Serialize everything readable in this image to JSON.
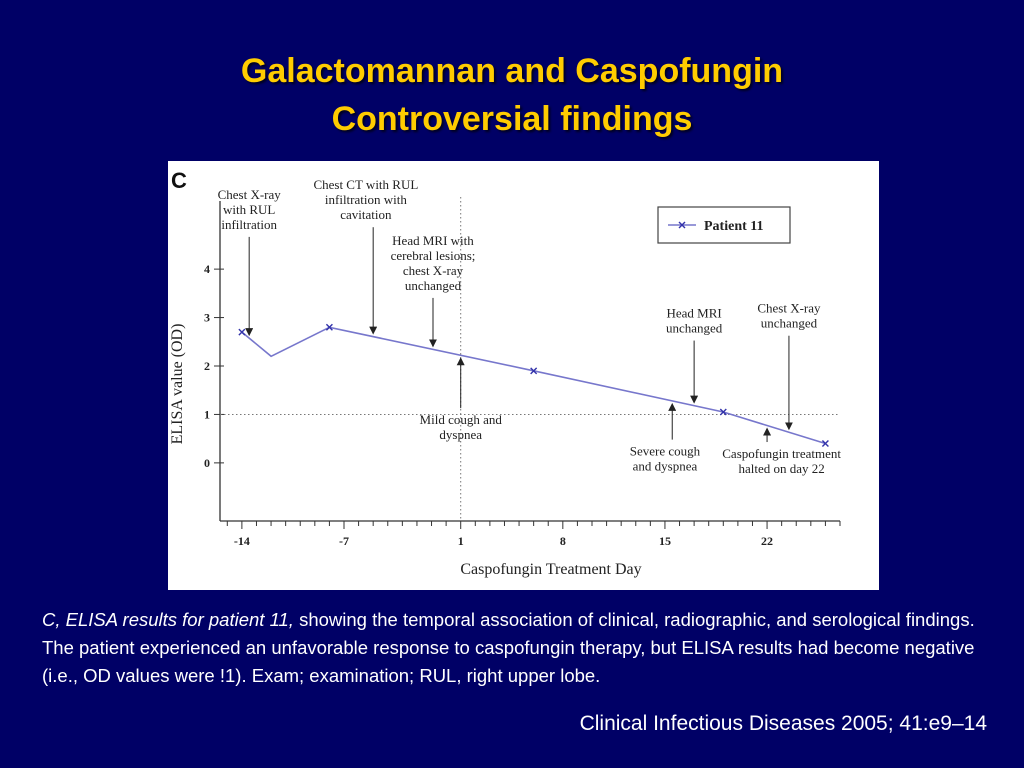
{
  "slide": {
    "title_line1": "Galactomannan and Caspofungin",
    "title_line2": "Controversial findings",
    "caption_lead": "C, ELISA results for patient 11,",
    "caption_body": " showing the temporal association of clinical, radiographic, and serological findings. The patient experienced an unfavorable response to caspofungin therapy, but ELISA results had become negative (i.e., OD values were !1). Exam; examination; RUL, right upper lobe.",
    "citation": "Clinical Infectious Diseases 2005; 41:e9–14"
  },
  "colors": {
    "background": "#000066",
    "title": "#FFCC00",
    "series_line": "#7777CC",
    "axis": "#333333"
  },
  "chart_data": {
    "type": "line",
    "panel_label": "C",
    "xlabel": "Caspofungin Treatment Day",
    "ylabel": "ELISA value (OD)",
    "xticks": [
      -14,
      -7,
      1,
      8,
      15,
      22
    ],
    "yticks": [
      0,
      1,
      2,
      3,
      4
    ],
    "xlim": [
      -15.5,
      27
    ],
    "ylim": [
      -1.2,
      5.2
    ],
    "grid": false,
    "reference_lines": {
      "x": 1,
      "y": 1
    },
    "legend": {
      "position": "top-right",
      "entries": [
        "Patient 11"
      ]
    },
    "series": [
      {
        "name": "Patient 11",
        "marker": "x",
        "points": [
          {
            "x": -14,
            "y": 2.7,
            "marked": true
          },
          {
            "x": -12,
            "y": 2.2,
            "marked": false
          },
          {
            "x": -8,
            "y": 2.8,
            "marked": true
          },
          {
            "x": 6,
            "y": 1.9,
            "marked": true
          },
          {
            "x": 19,
            "y": 1.05,
            "marked": true
          },
          {
            "x": 26,
            "y": 0.4,
            "marked": true
          }
        ]
      }
    ],
    "annotations": [
      {
        "id": "chest-xray-rul",
        "lines": [
          "Chest X-ray",
          "with RUL",
          "infiltration"
        ],
        "arrow_day": -13.5,
        "arrow_dir": "down",
        "text_day": -13.5,
        "text_value": 5.45
      },
      {
        "id": "chest-ct-rul",
        "lines": [
          "Chest CT with RUL",
          "infiltration with",
          "cavitation"
        ],
        "arrow_day": -5,
        "arrow_dir": "down",
        "text_day": -5.5,
        "text_value": 5.65
      },
      {
        "id": "head-mri-cerebral",
        "lines": [
          "Head MRI with",
          "cerebral lesions;",
          "chest X-ray",
          "unchanged"
        ],
        "arrow_day": -0.9,
        "arrow_dir": "down",
        "text_day": -0.9,
        "text_value": 4.5
      },
      {
        "id": "mild-cough",
        "lines": [
          "Mild cough and",
          "dyspnea"
        ],
        "arrow_day": 1,
        "arrow_dir": "up",
        "text_day": 1,
        "text_value": 0.8
      },
      {
        "id": "head-mri-unchanged",
        "lines": [
          "Head MRI",
          "unchanged"
        ],
        "arrow_day": 17,
        "arrow_dir": "down",
        "text_day": 17,
        "text_value": 3.0
      },
      {
        "id": "chest-xray-unchanged",
        "lines": [
          "Chest X-ray",
          "unchanged"
        ],
        "arrow_day": 23.5,
        "arrow_dir": "down",
        "text_day": 23.5,
        "text_value": 3.1
      },
      {
        "id": "severe-cough",
        "lines": [
          "Severe cough",
          "and dyspnea"
        ],
        "arrow_day": 15.5,
        "arrow_dir": "up",
        "text_day": 15,
        "text_value": 0.15
      },
      {
        "id": "caspo-halted",
        "lines": [
          "Caspofungin treatment",
          "halted on day 22"
        ],
        "arrow_day": 22,
        "arrow_dir": "up",
        "text_day": 23,
        "text_value": 0.1
      }
    ]
  }
}
